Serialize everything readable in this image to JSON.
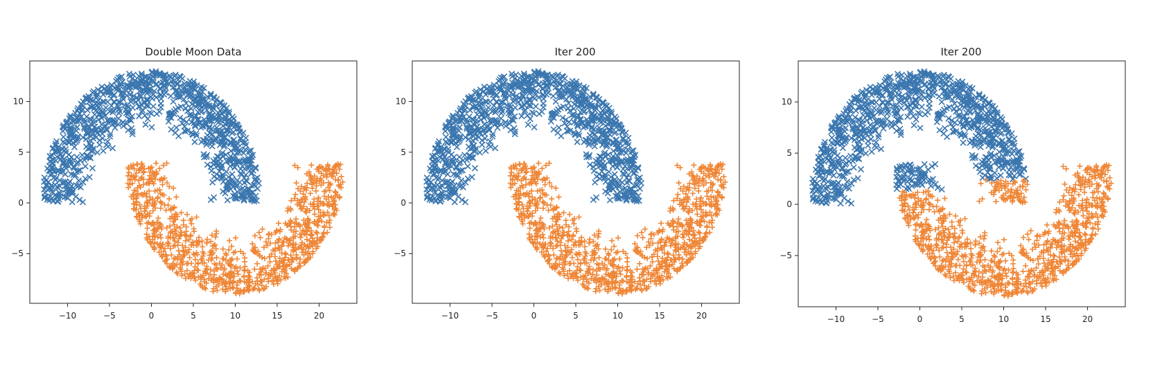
{
  "chart_data": [
    {
      "type": "scatter",
      "title": "Double Moon Data",
      "xlabel": "",
      "ylabel": "",
      "xlim": [
        -14.5,
        24.5
      ],
      "ylim": [
        -9.9,
        14.0
      ],
      "xticks": [
        -10,
        -5,
        0,
        5,
        10,
        15,
        20
      ],
      "xtick_labels": [
        "−10",
        "−5",
        "0",
        "5",
        "10",
        "15",
        "20"
      ],
      "yticks": [
        -5,
        0,
        5,
        10
      ],
      "ytick_labels": [
        "−5",
        "0",
        "5",
        "10"
      ],
      "grid": false,
      "series": [
        {
          "marker": "x",
          "color": "#3a76af",
          "shape": "upper-moon",
          "center": [
            0,
            0
          ],
          "radius_range": [
            7,
            13
          ],
          "point_count": 1000
        },
        {
          "marker": "+",
          "color": "#ef8636",
          "shape": "lower-moon",
          "center": [
            10,
            4
          ],
          "radius_range": [
            7,
            13
          ],
          "point_count": 1000
        }
      ]
    },
    {
      "type": "scatter",
      "title": "Iter 200",
      "xlabel": "",
      "ylabel": "",
      "xlim": [
        -14.5,
        24.5
      ],
      "ylim": [
        -9.9,
        14.0
      ],
      "xticks": [
        -10,
        -5,
        0,
        5,
        10,
        15,
        20
      ],
      "xtick_labels": [
        "−10",
        "−5",
        "0",
        "5",
        "10",
        "15",
        "20"
      ],
      "yticks": [
        -5,
        0,
        5,
        10
      ],
      "ytick_labels": [
        "−5",
        "0",
        "5",
        "10"
      ],
      "grid": false,
      "series": [
        {
          "marker": "x",
          "color": "#3a76af",
          "shape": "upper-moon",
          "center": [
            0,
            0
          ],
          "radius_range": [
            7,
            13
          ],
          "point_count": 1000
        },
        {
          "marker": "+",
          "color": "#ef8636",
          "shape": "lower-moon",
          "center": [
            10,
            4
          ],
          "radius_range": [
            7,
            13
          ],
          "point_count": 1000
        }
      ]
    },
    {
      "type": "scatter",
      "title": "Iter 200",
      "xlabel": "",
      "ylabel": "",
      "xlim": [
        -14.5,
        24.5
      ],
      "ylim": [
        -10.0,
        14.0
      ],
      "xticks": [
        -10,
        -5,
        0,
        5,
        10,
        15,
        20
      ],
      "xtick_labels": [
        "−10",
        "−5",
        "0",
        "5",
        "10",
        "15",
        "20"
      ],
      "yticks": [
        -5,
        0,
        5,
        10
      ],
      "ytick_labels": [
        "−5",
        "0",
        "5",
        "10"
      ],
      "grid": false,
      "series": [
        {
          "marker": "x",
          "color": "#3a76af",
          "shape": "mixed-classification",
          "blue_rule": "upper moon points above y=1.3 for x 0.5 to 12.5 and above y=2 for x 12.5 to 13; lower moon points with x below 3.3 and y above 1.3",
          "point_count": 1000
        },
        {
          "marker": "+",
          "color": "#ef8636",
          "shape": "mixed-classification",
          "orange_rule": "remaining points from both moons, including upper moon points 7 to 13 with y below about 2.4",
          "point_count": 1000
        }
      ]
    }
  ]
}
